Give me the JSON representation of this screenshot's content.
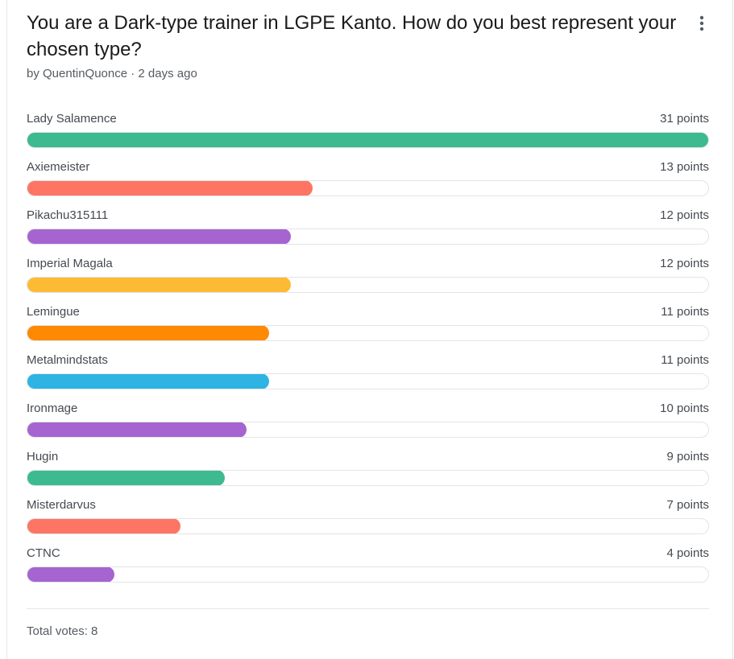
{
  "poll": {
    "title": "You are a Dark-type trainer in LGPE Kanto. How do you best represent your chosen type?",
    "meta": "by QuentinQuonce · 2 days ago",
    "menu_icon": "more-vertical-icon",
    "max_points": 31,
    "options": [
      {
        "name": "Lady Salamence",
        "points_label": "31 points",
        "points": 31,
        "color": "#3dba8f"
      },
      {
        "name": "Axiemeister",
        "points_label": "13 points",
        "points": 13,
        "color": "#fe7563"
      },
      {
        "name": "Pikachu315111",
        "points_label": "12 points",
        "points": 12,
        "color": "#a664d0"
      },
      {
        "name": "Imperial Magala",
        "points_label": "12 points",
        "points": 12,
        "color": "#fdbb35"
      },
      {
        "name": "Lemingue",
        "points_label": "11 points",
        "points": 11,
        "color": "#fe8903"
      },
      {
        "name": "Metalmindstats",
        "points_label": "11 points",
        "points": 11,
        "color": "#2db4e3"
      },
      {
        "name": "Ironmage",
        "points_label": "10 points",
        "points": 10,
        "color": "#a664d0"
      },
      {
        "name": "Hugin",
        "points_label": "9 points",
        "points": 9,
        "color": "#3dba8f"
      },
      {
        "name": "Misterdarvus",
        "points_label": "7 points",
        "points": 7,
        "color": "#fe7563"
      },
      {
        "name": "CTNC",
        "points_label": "4 points",
        "points": 4,
        "color": "#a664d0"
      }
    ],
    "total_votes": "Total votes: 8"
  }
}
